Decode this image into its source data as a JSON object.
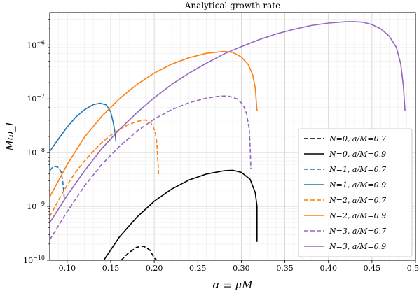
{
  "chart_data": {
    "type": "line",
    "title": "Analytical growth rate",
    "xlabel": "α ≡ μM",
    "ylabel": "Mω_I",
    "xlim": [
      0.08,
      0.5
    ],
    "ylim": [
      1e-10,
      4e-06
    ],
    "yscale": "log",
    "grid": true,
    "legend": "lower-right",
    "x_ticks": [
      {
        "value": 0.1,
        "label": "0.10"
      },
      {
        "value": 0.15,
        "label": "0.15"
      },
      {
        "value": 0.2,
        "label": "0.20"
      },
      {
        "value": 0.25,
        "label": "0.25"
      },
      {
        "value": 0.3,
        "label": "0.30"
      },
      {
        "value": 0.35,
        "label": "0.35"
      },
      {
        "value": 0.4,
        "label": "0.40"
      },
      {
        "value": 0.45,
        "label": "0.45"
      },
      {
        "value": 0.5,
        "label": "0.50"
      }
    ],
    "y_ticks": [
      {
        "value": 1e-10,
        "base": "10",
        "exp": "−10"
      },
      {
        "value": 1e-09,
        "base": "10",
        "exp": "−9"
      },
      {
        "value": 1e-08,
        "base": "10",
        "exp": "−8"
      },
      {
        "value": 1e-07,
        "base": "10",
        "exp": "−7"
      },
      {
        "value": 1e-06,
        "base": "10",
        "exp": "−6"
      }
    ],
    "series": [
      {
        "name": "N=0, a/M=0.7",
        "label_n": "N=0",
        "label_spin": "a/M=0.7",
        "color": "#000000",
        "dash": "dashed",
        "points": [
          [
            0.162,
            1e-10
          ],
          [
            0.17,
            1.35e-10
          ],
          [
            0.18,
            1.75e-10
          ],
          [
            0.188,
            1.82e-10
          ],
          [
            0.195,
            1.55e-10
          ],
          [
            0.2,
            1.1e-10
          ],
          [
            0.203,
            1e-10
          ]
        ]
      },
      {
        "name": "N=0, a/M=0.9",
        "label_n": "N=0",
        "label_spin": "a/M=0.9",
        "color": "#000000",
        "dash": "solid",
        "points": [
          [
            0.142,
            1e-10
          ],
          [
            0.16,
            2.7e-10
          ],
          [
            0.18,
            6.3e-10
          ],
          [
            0.2,
            1.25e-09
          ],
          [
            0.22,
            2.1e-09
          ],
          [
            0.24,
            3.1e-09
          ],
          [
            0.26,
            4e-09
          ],
          [
            0.28,
            4.6e-09
          ],
          [
            0.29,
            4.7e-09
          ],
          [
            0.3,
            4.3e-09
          ],
          [
            0.31,
            3.2e-09
          ],
          [
            0.316,
            1.8e-09
          ],
          [
            0.318,
            1e-09
          ],
          [
            0.318,
            2.2e-10
          ]
        ]
      },
      {
        "name": "N=1, a/M=0.7",
        "label_n": "N=1",
        "label_spin": "a/M=0.7",
        "color": "#1f77b4",
        "dash": "dashed",
        "points": [
          [
            0.08,
            4.6e-09
          ],
          [
            0.083,
            5.3e-09
          ],
          [
            0.087,
            5.5e-09
          ],
          [
            0.09,
            5.3e-09
          ],
          [
            0.093,
            4.4e-09
          ],
          [
            0.095,
            2.9e-09
          ],
          [
            0.097,
            1.3e-09
          ]
        ]
      },
      {
        "name": "N=1, a/M=0.9",
        "label_n": "N=1",
        "label_spin": "a/M=0.9",
        "color": "#1f77b4",
        "dash": "solid",
        "points": [
          [
            0.08,
            1.05e-08
          ],
          [
            0.09,
            1.8e-08
          ],
          [
            0.1,
            3e-08
          ],
          [
            0.11,
            4.6e-08
          ],
          [
            0.12,
            6.3e-08
          ],
          [
            0.13,
            7.8e-08
          ],
          [
            0.138,
            8.3e-08
          ],
          [
            0.145,
            7.7e-08
          ],
          [
            0.15,
            5.7e-08
          ],
          [
            0.153,
            3.6e-08
          ],
          [
            0.155,
            2.3e-08
          ],
          [
            0.156,
            1.6e-08
          ]
        ]
      },
      {
        "name": "N=2, a/M=0.7",
        "label_n": "N=2",
        "label_spin": "a/M=0.7",
        "color": "#ff7f0e",
        "dash": "dashed",
        "points": [
          [
            0.08,
            6.5e-10
          ],
          [
            0.09,
            1.3e-09
          ],
          [
            0.1,
            2.5e-09
          ],
          [
            0.11,
            4.4e-09
          ],
          [
            0.12,
            7e-09
          ],
          [
            0.13,
            1.05e-08
          ],
          [
            0.14,
            1.55e-08
          ],
          [
            0.15,
            2.1e-08
          ],
          [
            0.16,
            2.7e-08
          ],
          [
            0.17,
            3.3e-08
          ],
          [
            0.18,
            3.8e-08
          ],
          [
            0.19,
            4.05e-08
          ],
          [
            0.196,
            3.6e-08
          ],
          [
            0.201,
            2.5e-08
          ],
          [
            0.203,
            1.5e-08
          ],
          [
            0.205,
            4e-09
          ]
        ]
      },
      {
        "name": "N=2, a/M=0.9",
        "label_n": "N=2",
        "label_spin": "a/M=0.9",
        "color": "#ff7f0e",
        "dash": "solid",
        "points": [
          [
            0.08,
            1.5e-09
          ],
          [
            0.1,
            6e-09
          ],
          [
            0.12,
            1.95e-08
          ],
          [
            0.14,
            4.8e-08
          ],
          [
            0.16,
            1e-07
          ],
          [
            0.18,
            1.85e-07
          ],
          [
            0.2,
            3e-07
          ],
          [
            0.22,
            4.4e-07
          ],
          [
            0.24,
            5.8e-07
          ],
          [
            0.26,
            7e-07
          ],
          [
            0.28,
            7.6e-07
          ],
          [
            0.29,
            7.3e-07
          ],
          [
            0.3,
            6e-07
          ],
          [
            0.308,
            4.3e-07
          ],
          [
            0.313,
            2.8e-07
          ],
          [
            0.316,
            1.6e-07
          ],
          [
            0.318,
            6e-08
          ]
        ]
      },
      {
        "name": "N=3, a/M=0.7",
        "label_n": "N=3",
        "label_spin": "a/M=0.7",
        "color": "#9467bd",
        "dash": "dashed",
        "points": [
          [
            0.08,
            2.4e-10
          ],
          [
            0.1,
            8e-10
          ],
          [
            0.12,
            2.4e-09
          ],
          [
            0.14,
            6.1e-09
          ],
          [
            0.16,
            1.3e-08
          ],
          [
            0.18,
            2.5e-08
          ],
          [
            0.2,
            4.2e-08
          ],
          [
            0.22,
            6.3e-08
          ],
          [
            0.24,
            8.5e-08
          ],
          [
            0.26,
            1.03e-07
          ],
          [
            0.275,
            1.12e-07
          ],
          [
            0.285,
            1.13e-07
          ],
          [
            0.295,
            1e-07
          ],
          [
            0.302,
            7.8e-08
          ],
          [
            0.306,
            5.3e-08
          ],
          [
            0.309,
            2.8e-08
          ],
          [
            0.31,
            1.4e-08
          ],
          [
            0.311,
            5e-09
          ]
        ]
      },
      {
        "name": "N=3, a/M=0.9",
        "label_n": "N=3",
        "label_spin": "a/M=0.9",
        "color": "#9467bd",
        "dash": "solid",
        "points": [
          [
            0.08,
            5e-10
          ],
          [
            0.1,
            1.6e-09
          ],
          [
            0.12,
            4.6e-09
          ],
          [
            0.14,
            1.2e-08
          ],
          [
            0.16,
            2.7e-08
          ],
          [
            0.18,
            5.5e-08
          ],
          [
            0.2,
            1.05e-07
          ],
          [
            0.22,
            1.85e-07
          ],
          [
            0.24,
            3e-07
          ],
          [
            0.26,
            4.6e-07
          ],
          [
            0.28,
            6.8e-07
          ],
          [
            0.3,
            9.3e-07
          ],
          [
            0.32,
            1.25e-06
          ],
          [
            0.34,
            1.6e-06
          ],
          [
            0.36,
            1.95e-06
          ],
          [
            0.38,
            2.3e-06
          ],
          [
            0.4,
            2.55e-06
          ],
          [
            0.42,
            2.7e-06
          ],
          [
            0.43,
            2.72e-06
          ],
          [
            0.44,
            2.65e-06
          ],
          [
            0.45,
            2.4e-06
          ],
          [
            0.46,
            2e-06
          ],
          [
            0.47,
            1.45e-06
          ],
          [
            0.478,
            9e-07
          ],
          [
            0.483,
            4.5e-07
          ],
          [
            0.486,
            1.8e-07
          ],
          [
            0.488,
            6e-08
          ]
        ]
      }
    ]
  }
}
